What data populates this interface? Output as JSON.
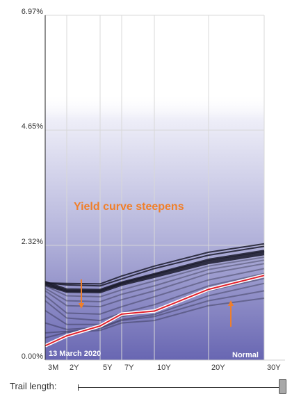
{
  "chart_data": {
    "type": "line",
    "y_ticks": [
      "6.97%",
      "4.65%",
      "2.32%",
      "0.00%"
    ],
    "ylim": [
      0,
      6.97
    ],
    "x": [
      0.25,
      2,
      5,
      7,
      10,
      20,
      30
    ],
    "x_tick_labels": [
      "3M",
      "2Y",
      "5Y",
      "7Y",
      "10Y",
      "20Y",
      "30Y"
    ],
    "current_series": {
      "values": [
        0.29,
        0.49,
        0.69,
        0.93,
        0.99,
        1.43,
        1.71
      ]
    },
    "trail_series": [
      {
        "values": [
          1.55,
          1.4,
          1.4,
          1.55,
          1.72,
          2.0,
          2.18
        ]
      },
      {
        "values": [
          1.52,
          1.38,
          1.37,
          1.52,
          1.68,
          1.96,
          2.14
        ]
      },
      {
        "values": [
          1.58,
          1.43,
          1.42,
          1.57,
          1.74,
          2.03,
          2.21
        ]
      },
      {
        "values": [
          1.5,
          1.3,
          1.28,
          1.42,
          1.6,
          1.9,
          2.08
        ]
      },
      {
        "values": [
          1.45,
          1.2,
          1.18,
          1.33,
          1.5,
          1.83,
          2.02
        ]
      },
      {
        "values": [
          1.4,
          1.1,
          1.08,
          1.22,
          1.4,
          1.75,
          1.95
        ]
      },
      {
        "values": [
          1.3,
          0.95,
          0.93,
          1.08,
          1.28,
          1.62,
          1.85
        ]
      },
      {
        "values": [
          1.2,
          0.85,
          0.8,
          0.95,
          1.12,
          1.5,
          1.75
        ]
      },
      {
        "values": [
          1.0,
          0.72,
          0.72,
          0.88,
          1.0,
          1.4,
          1.65
        ]
      },
      {
        "values": [
          0.75,
          0.62,
          0.66,
          0.82,
          0.92,
          1.3,
          1.55
        ]
      },
      {
        "values": [
          0.55,
          0.58,
          0.64,
          0.8,
          0.88,
          1.2,
          1.4
        ]
      },
      {
        "values": [
          0.45,
          0.56,
          0.6,
          0.75,
          0.8,
          1.1,
          1.25
        ]
      },
      {
        "values": [
          1.56,
          1.52,
          1.5,
          1.64,
          1.85,
          2.12,
          2.3
        ]
      },
      {
        "values": [
          1.56,
          1.55,
          1.54,
          1.7,
          1.9,
          2.18,
          2.35
        ]
      }
    ],
    "annotations": {
      "steepens": "Yield curve steepens",
      "date": "13  March 2020",
      "shape": "Normal"
    },
    "colors": {
      "current_line": "#e0202c",
      "arrow": "#f07f2a",
      "annotation_text": "#f07f2a",
      "trail_line": "#1a1a2a",
      "band_bottom": "#6a68b4",
      "band_top": "#f4f4fb"
    },
    "grid": true
  },
  "controls": {
    "trail_label": "Trail length:",
    "trail_length": 1.0
  }
}
